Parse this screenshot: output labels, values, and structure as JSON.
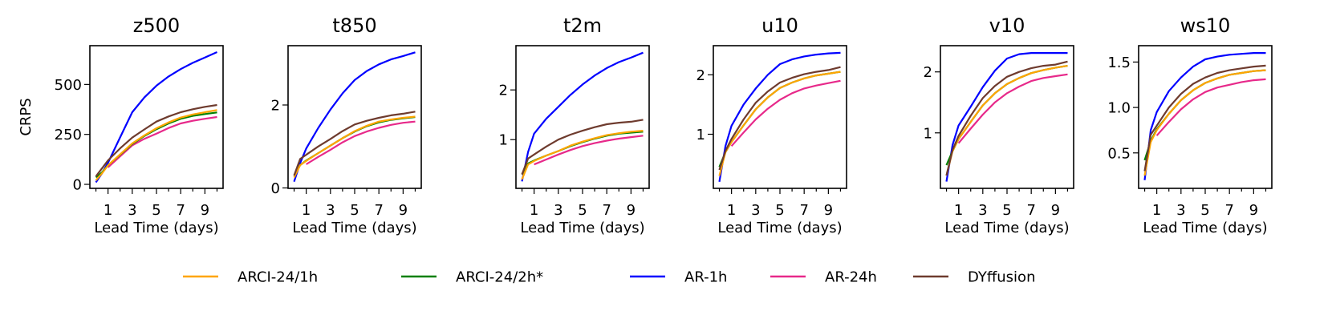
{
  "chart_data": {
    "type": "line",
    "ylabel": "CRPS",
    "x": [
      0,
      0.5,
      1,
      2,
      3,
      4,
      5,
      6,
      7,
      8,
      9,
      10
    ],
    "xlim": [
      -0.5,
      10.5
    ],
    "xticks": [
      1,
      3,
      5,
      7,
      9
    ],
    "legend_placement": "bottom-center",
    "grid": false,
    "legend": [
      {
        "name": "ARCI-24/1h",
        "color": "#FFA500"
      },
      {
        "name": "ARCI-24/2h*",
        "color": "#008000"
      },
      {
        "name": "AR-1h",
        "color": "#0000FF"
      },
      {
        "name": "AR-24h",
        "color": "#E7298A"
      },
      {
        "name": "DYffusion",
        "color": "#6E3B2E"
      }
    ],
    "panels": [
      {
        "title": "z500",
        "xlabel": "Lead Time (days)",
        "ylim": [
          -20,
          694
        ],
        "yticks": [
          0,
          250,
          500
        ],
        "ytick_labels": [
          "0",
          "250",
          "500"
        ],
        "series": [
          {
            "name": "ARCI-24/1h",
            "values": [
              20,
              55,
              95,
              150,
              205,
              245,
              281,
              310,
              334,
              350,
              361,
              372
            ]
          },
          {
            "name": "ARCI-24/2h*",
            "values": [
              35,
              60,
              95,
              148,
              202,
              242,
              276,
              305,
              328,
              343,
              352,
              360
            ]
          },
          {
            "name": "AR-1h",
            "values": [
              10,
              55,
              108,
              235,
              361,
              435,
              494,
              540,
              577,
              608,
              635,
              662
            ]
          },
          {
            "name": "AR-24h",
            "values": [
              null,
              null,
              85,
              140,
              195,
              228,
              254,
              282,
              305,
              318,
              328,
              337
            ]
          },
          {
            "name": "DYffusion",
            "values": [
              40,
              80,
              120,
              180,
              234,
              275,
              314,
              340,
              361,
              376,
              388,
              397
            ]
          }
        ]
      },
      {
        "title": "t850",
        "xlabel": "Lead Time (days)",
        "ylim": [
          -0.01,
          3.43
        ],
        "yticks": [
          0,
          2
        ],
        "ytick_labels": [
          "0",
          "2"
        ],
        "series": [
          {
            "name": "ARCI-24/1h",
            "values": [
              0.25,
              0.55,
              0.65,
              0.84,
              1.02,
              1.2,
              1.37,
              1.5,
              1.6,
              1.65,
              1.69,
              1.72
            ]
          },
          {
            "name": "ARCI-24/2h*",
            "values": [
              0.3,
              0.55,
              0.66,
              0.84,
              1.02,
              1.2,
              1.36,
              1.49,
              1.58,
              1.64,
              1.68,
              1.71
            ]
          },
          {
            "name": "AR-1h",
            "values": [
              0.15,
              0.6,
              0.95,
              1.45,
              1.89,
              2.28,
              2.6,
              2.82,
              2.98,
              3.1,
              3.18,
              3.27
            ]
          },
          {
            "name": "AR-24h",
            "values": [
              null,
              null,
              0.57,
              0.75,
              0.92,
              1.1,
              1.25,
              1.36,
              1.45,
              1.52,
              1.57,
              1.6
            ]
          },
          {
            "name": "DYffusion",
            "values": [
              0.3,
              0.7,
              0.8,
              1.0,
              1.18,
              1.37,
              1.53,
              1.62,
              1.69,
              1.75,
              1.79,
              1.84
            ]
          }
        ]
      },
      {
        "title": "t2m",
        "xlabel": "Lead Time (days)",
        "ylim": [
          0.02,
          2.89
        ],
        "yticks": [
          1,
          2
        ],
        "ytick_labels": [
          "1",
          "2"
        ],
        "series": [
          {
            "name": "ARCI-24/1h",
            "values": [
              0.2,
              0.5,
              0.57,
              0.68,
              0.77,
              0.88,
              0.96,
              1.03,
              1.09,
              1.13,
              1.16,
              1.18
            ]
          },
          {
            "name": "ARCI-24/2h*",
            "values": [
              0.3,
              0.52,
              0.58,
              0.68,
              0.77,
              0.87,
              0.95,
              1.02,
              1.08,
              1.12,
              1.14,
              1.16
            ]
          },
          {
            "name": "AR-1h",
            "values": [
              0.16,
              0.75,
              1.12,
              1.42,
              1.66,
              1.9,
              2.11,
              2.29,
              2.44,
              2.56,
              2.65,
              2.75
            ]
          },
          {
            "name": "AR-24h",
            "values": [
              null,
              null,
              0.5,
              0.6,
              0.7,
              0.79,
              0.87,
              0.93,
              0.98,
              1.02,
              1.05,
              1.08
            ]
          },
          {
            "name": "DYffusion",
            "values": [
              0.3,
              0.62,
              0.7,
              0.86,
              1.0,
              1.1,
              1.18,
              1.25,
              1.31,
              1.34,
              1.36,
              1.4
            ]
          }
        ]
      },
      {
        "title": "u10",
        "xlabel": "Lead Time (days)",
        "ylim": [
          0.09,
          2.49
        ],
        "yticks": [
          1,
          2
        ],
        "ytick_labels": [
          "1",
          "2"
        ],
        "series": [
          {
            "name": "ARCI-24/1h",
            "values": [
              0.3,
              0.7,
              0.87,
              1.15,
              1.42,
              1.62,
              1.78,
              1.87,
              1.94,
              1.99,
              2.02,
              2.05
            ]
          },
          {
            "name": "ARCI-24/2h*",
            "values": [
              0.45,
              0.7,
              0.87,
              1.15,
              1.42,
              1.62,
              1.78,
              1.87,
              1.94,
              1.99,
              2.02,
              2.05
            ]
          },
          {
            "name": "AR-1h",
            "values": [
              0.2,
              0.8,
              1.14,
              1.5,
              1.77,
              2.0,
              2.18,
              2.26,
              2.31,
              2.34,
              2.36,
              2.37
            ]
          },
          {
            "name": "AR-24h",
            "values": [
              null,
              null,
              0.8,
              1.03,
              1.25,
              1.43,
              1.58,
              1.69,
              1.77,
              1.82,
              1.86,
              1.9
            ]
          },
          {
            "name": "DYffusion",
            "values": [
              0.4,
              0.72,
              0.92,
              1.25,
              1.53,
              1.72,
              1.87,
              1.95,
              2.01,
              2.05,
              2.08,
              2.13
            ]
          }
        ]
      },
      {
        "title": "v10",
        "xlabel": "Lead Time (days)",
        "ylim": [
          0.09,
          2.43
        ],
        "yticks": [
          1,
          2
        ],
        "ytick_labels": [
          "1",
          "2"
        ],
        "series": [
          {
            "name": "ARCI-24/1h",
            "values": [
              0.3,
              0.7,
              0.9,
              1.18,
              1.45,
              1.65,
              1.8,
              1.9,
              1.98,
              2.03,
              2.07,
              2.1
            ]
          },
          {
            "name": "ARCI-24/2h*",
            "values": [
              0.47,
              0.7,
              0.9,
              1.18,
              1.45,
              1.65,
              1.8,
              1.9,
              1.98,
              2.03,
              2.07,
              2.1
            ]
          },
          {
            "name": "AR-1h",
            "values": [
              0.2,
              0.8,
              1.12,
              1.43,
              1.75,
              2.02,
              2.22,
              2.29,
              2.31,
              2.31,
              2.31,
              2.31
            ]
          },
          {
            "name": "AR-24h",
            "values": [
              null,
              null,
              0.83,
              1.07,
              1.3,
              1.5,
              1.65,
              1.76,
              1.85,
              1.9,
              1.93,
              1.96
            ]
          },
          {
            "name": "DYffusion",
            "values": [
              0.3,
              0.72,
              0.95,
              1.28,
              1.57,
              1.77,
              1.92,
              2.0,
              2.06,
              2.1,
              2.12,
              2.17
            ]
          }
        ]
      },
      {
        "title": "ws10",
        "xlabel": "Lead Time (days)",
        "ylim": [
          0.11,
          1.68
        ],
        "yticks": [
          0.5,
          1.0,
          1.5
        ],
        "ytick_labels": [
          "0.5",
          "1.0",
          "1.5"
        ],
        "series": [
          {
            "name": "ARCI-24/1h",
            "values": [
              0.25,
              0.62,
              0.75,
              0.93,
              1.08,
              1.19,
              1.27,
              1.32,
              1.36,
              1.38,
              1.4,
              1.41
            ]
          },
          {
            "name": "ARCI-24/2h*",
            "values": [
              0.42,
              0.63,
              0.76,
              0.93,
              1.08,
              1.19,
              1.27,
              1.32,
              1.36,
              1.38,
              1.4,
              1.41
            ]
          },
          {
            "name": "AR-1h",
            "values": [
              0.2,
              0.75,
              0.95,
              1.18,
              1.33,
              1.45,
              1.53,
              1.56,
              1.58,
              1.59,
              1.6,
              1.6
            ]
          },
          {
            "name": "AR-24h",
            "values": [
              null,
              null,
              0.69,
              0.84,
              0.98,
              1.09,
              1.17,
              1.22,
              1.25,
              1.28,
              1.3,
              1.31
            ]
          },
          {
            "name": "DYffusion",
            "values": [
              0.3,
              0.7,
              0.8,
              1.0,
              1.15,
              1.26,
              1.33,
              1.38,
              1.41,
              1.43,
              1.45,
              1.46
            ]
          }
        ]
      }
    ]
  }
}
